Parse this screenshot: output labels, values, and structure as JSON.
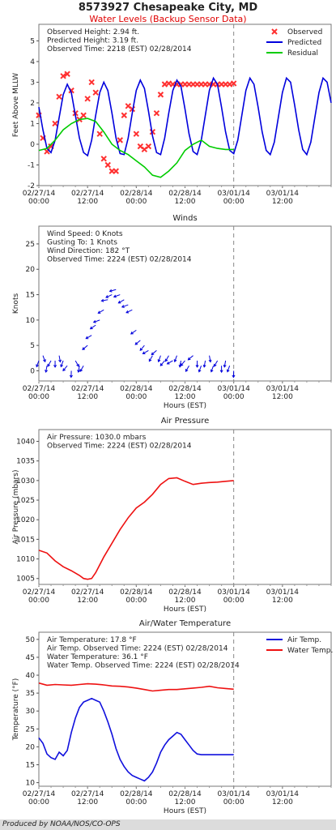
{
  "station": {
    "title": "8573927 Chesapeake City, MD",
    "subtitle": "Water Levels (Backup Sensor Data)"
  },
  "footer": "Produced by NOAA/NOS/CO-OPS",
  "x_axis": {
    "tick_labels": [
      [
        "02/27/14",
        "00:00"
      ],
      [
        "02/27/14",
        "12:00"
      ],
      [
        "02/28/14",
        "00:00"
      ],
      [
        "02/28/14",
        "12:00"
      ],
      [
        "03/01/14",
        "00:00"
      ],
      [
        "03/01/14",
        "12:00"
      ]
    ],
    "label": "Hours (EST)",
    "range_hours": [
      0,
      72
    ],
    "now_marker_hours": 48
  },
  "chart_data": [
    {
      "type": "line",
      "title": "",
      "ylabel": "Feet Above MLLW",
      "xlabel": "",
      "ylim": [
        -2,
        5.8
      ],
      "yticks": [
        -2,
        -1,
        0,
        1,
        2,
        3,
        4,
        5
      ],
      "grid": false,
      "legend_position": "top-right",
      "info": [
        "Observed Height:  2.94 ft.",
        "Predicted Height:  3.19 ft.",
        "Observed Time: 2218 (EST) 02/28/2014"
      ],
      "series": [
        {
          "name": "Observed",
          "color": "#ff3030",
          "style": "x-markers",
          "x": [
            0,
            1,
            2,
            3,
            4,
            5,
            6,
            7,
            8,
            9,
            10,
            11,
            12,
            13,
            14,
            15,
            16,
            17,
            18,
            19,
            20,
            21,
            22,
            23,
            24,
            25,
            26,
            27,
            28,
            29,
            30,
            31,
            32,
            33,
            34,
            35,
            36,
            37,
            38,
            39,
            40,
            41,
            42,
            43,
            44,
            45,
            46,
            47,
            48
          ],
          "y": [
            1.4,
            0.3,
            -0.35,
            -0.1,
            1.0,
            2.3,
            3.3,
            3.4,
            2.6,
            1.5,
            1.2,
            1.4,
            2.2,
            3.0,
            2.5,
            0.5,
            -0.7,
            -1.0,
            -1.3,
            -1.3,
            0.2,
            1.4,
            1.85,
            1.7,
            0.5,
            -0.1,
            -0.25,
            -0.1,
            0.6,
            1.5,
            2.4,
            2.9,
            2.94,
            2.9,
            2.9,
            2.9,
            2.9,
            2.9,
            2.9,
            2.9,
            2.9,
            2.9,
            2.9,
            2.9,
            2.9,
            2.9,
            2.9,
            2.9,
            2.94
          ]
        },
        {
          "name": "Predicted",
          "color": "#0000dd",
          "style": "line",
          "x": [
            0,
            1,
            2,
            3,
            4,
            5,
            6,
            7,
            8,
            9,
            10,
            11,
            12,
            13,
            14,
            15,
            16,
            17,
            18,
            19,
            20,
            21,
            22,
            23,
            24,
            25,
            26,
            27,
            28,
            29,
            30,
            31,
            32,
            33,
            34,
            35,
            36,
            37,
            38,
            39,
            40,
            41,
            42,
            43,
            44,
            45,
            46,
            47,
            48,
            49,
            50,
            51,
            52,
            53,
            54,
            55,
            56,
            57,
            58,
            59,
            60,
            61,
            62,
            63,
            64,
            65,
            66,
            67,
            68,
            69,
            70,
            71,
            72
          ],
          "y": [
            1.8,
            0.7,
            -0.2,
            -0.4,
            0.2,
            1.3,
            2.4,
            2.9,
            2.5,
            1.4,
            0.3,
            -0.4,
            -0.55,
            0.2,
            1.4,
            2.5,
            3.0,
            2.6,
            1.5,
            0.3,
            -0.45,
            -0.5,
            0.3,
            1.5,
            2.6,
            3.1,
            2.7,
            1.6,
            0.4,
            -0.4,
            -0.5,
            0.3,
            1.5,
            2.6,
            3.1,
            2.8,
            1.7,
            0.5,
            -0.35,
            -0.5,
            0.2,
            1.4,
            2.6,
            3.2,
            2.9,
            1.8,
            0.6,
            -0.3,
            -0.45,
            0.2,
            1.4,
            2.6,
            3.2,
            2.9,
            1.8,
            0.6,
            -0.3,
            -0.5,
            0.1,
            1.3,
            2.5,
            3.2,
            3.0,
            1.9,
            0.7,
            -0.25,
            -0.5,
            0.1,
            1.3,
            2.5,
            3.2,
            3.0,
            2.0
          ]
        },
        {
          "name": "Residual",
          "color": "#00cc00",
          "style": "line",
          "x": [
            0,
            2,
            4,
            6,
            8,
            10,
            12,
            14,
            16,
            18,
            20,
            22,
            24,
            26,
            28,
            30,
            32,
            34,
            36,
            38,
            40,
            42,
            44,
            46,
            48
          ],
          "y": [
            -0.3,
            -0.2,
            0.2,
            0.7,
            1.0,
            1.2,
            1.25,
            1.1,
            0.6,
            0.0,
            -0.3,
            -0.5,
            -0.8,
            -1.1,
            -1.5,
            -1.6,
            -1.3,
            -0.9,
            -0.3,
            0.0,
            0.2,
            -0.1,
            -0.2,
            -0.25,
            -0.25
          ]
        }
      ]
    },
    {
      "type": "scatter",
      "title": "Winds",
      "ylabel": "Knots",
      "xlabel": "Hours (EST)",
      "ylim": [
        -2,
        28.5
      ],
      "yticks": [
        0,
        5,
        10,
        15,
        20,
        25
      ],
      "grid": false,
      "info": [
        "Wind Speed: 0 Knots",
        "Gusting To: 1 Knots",
        "Wind Direction: 182 °T",
        "Observed Time: 2224 (EST) 02/28/2014"
      ],
      "series": [
        {
          "name": "Wind Speed",
          "color": "#0000dd",
          "style": "arrows",
          "x": [
            0,
            1,
            2,
            3,
            4,
            5,
            6,
            7,
            8,
            9,
            10,
            11,
            12,
            13,
            14,
            15,
            16,
            17,
            18,
            19,
            20,
            21,
            22,
            23,
            24,
            25,
            26,
            27,
            28,
            29,
            30,
            31,
            32,
            33,
            34,
            35,
            36,
            37,
            38,
            39,
            40,
            41,
            42,
            43,
            44,
            45,
            46,
            47,
            48
          ],
          "y": [
            2,
            3,
            1,
            2,
            2,
            3,
            2,
            1,
            0,
            2,
            1,
            1,
            5,
            7,
            9,
            10,
            12,
            14,
            15,
            16,
            15,
            14,
            13,
            12,
            8,
            6,
            5,
            4,
            3,
            4,
            3,
            2,
            3,
            2,
            3,
            2,
            2,
            1,
            3,
            2,
            1,
            2,
            3,
            1,
            2,
            1,
            2,
            1,
            0
          ],
          "direction_deg": [
            200,
            160,
            190,
            210,
            180,
            170,
            200,
            220,
            182,
            150,
            190,
            210,
            230,
            240,
            235,
            250,
            240,
            260,
            245,
            255,
            250,
            240,
            250,
            245,
            235,
            230,
            220,
            240,
            210,
            230,
            200,
            220,
            210,
            240,
            200,
            190,
            220,
            210,
            230,
            180,
            200,
            190,
            170,
            200,
            210,
            180,
            190,
            200,
            182
          ]
        }
      ]
    },
    {
      "type": "line",
      "title": "Air Pressure",
      "ylabel": "Air Pressure (mbars)",
      "xlabel": "Hours (EST)",
      "ylim": [
        1003.5,
        1043
      ],
      "yticks": [
        1005,
        1010,
        1015,
        1020,
        1025,
        1030,
        1035,
        1040
      ],
      "grid": false,
      "info": [
        "Air Pressure: 1030.0 mbars",
        "Observed Time: 2224 (EST) 02/28/2014"
      ],
      "series": [
        {
          "name": "Air Pressure",
          "color": "#ee1111",
          "x": [
            0,
            2,
            4,
            6,
            8,
            10,
            11,
            12,
            13,
            14,
            16,
            18,
            20,
            22,
            24,
            26,
            28,
            30,
            32,
            34,
            36,
            38,
            40,
            42,
            44,
            46,
            48
          ],
          "y": [
            1012.2,
            1011.5,
            1009.5,
            1008.0,
            1007.0,
            1005.8,
            1005.0,
            1004.8,
            1005.0,
            1006.5,
            1010.5,
            1014.0,
            1017.5,
            1020.5,
            1023.0,
            1024.5,
            1026.5,
            1029.0,
            1030.5,
            1030.7,
            1029.8,
            1029.0,
            1029.3,
            1029.5,
            1029.6,
            1029.8,
            1030.0
          ]
        }
      ]
    },
    {
      "type": "line",
      "title": "Air/Water Temperature",
      "ylabel": "Temperature (°F)",
      "xlabel": "Hours (EST)",
      "ylim": [
        9,
        52
      ],
      "yticks": [
        10,
        15,
        20,
        25,
        30,
        35,
        40,
        45,
        50
      ],
      "grid": false,
      "legend_position": "top-right",
      "info": [
        "Air Temperature: 17.8 °F",
        "Air Temp. Observed Time: 2224 (EST) 02/28/2014",
        "Water Temperature: 36.1 °F",
        "Water Temp. Observed Time: 2224 (EST) 02/28/2014"
      ],
      "series": [
        {
          "name": "Air Temp.",
          "color": "#1010dd",
          "x": [
            0,
            1,
            2,
            3,
            4,
            5,
            6,
            7,
            8,
            9,
            10,
            11,
            12,
            13,
            14,
            15,
            16,
            17,
            18,
            19,
            20,
            21,
            22,
            23,
            24,
            25,
            26,
            27,
            28,
            29,
            30,
            31,
            32,
            33,
            34,
            35,
            36,
            37,
            38,
            39,
            40,
            41,
            42,
            43,
            44,
            45,
            46,
            47,
            48
          ],
          "y": [
            22.5,
            21.0,
            18.0,
            17.0,
            16.5,
            18.5,
            17.5,
            19.0,
            24.0,
            28.0,
            31.0,
            32.5,
            33.0,
            33.5,
            33.0,
            32.5,
            30.0,
            27.0,
            23.5,
            19.5,
            16.5,
            14.5,
            13.0,
            12.0,
            11.5,
            11.0,
            10.5,
            11.5,
            13.0,
            15.5,
            18.5,
            20.5,
            22.0,
            23.0,
            24.0,
            23.5,
            22.0,
            20.5,
            19.0,
            18.0,
            17.8,
            17.8,
            17.8,
            17.8,
            17.8,
            17.8,
            17.8,
            17.8,
            17.8
          ]
        },
        {
          "name": "Water Temp.",
          "color": "#ee1111",
          "x": [
            0,
            2,
            4,
            6,
            8,
            10,
            12,
            14,
            16,
            18,
            20,
            22,
            24,
            26,
            28,
            30,
            32,
            34,
            36,
            38,
            40,
            42,
            44,
            46,
            48
          ],
          "y": [
            37.8,
            37.2,
            37.4,
            37.3,
            37.2,
            37.4,
            37.6,
            37.5,
            37.3,
            37.0,
            36.9,
            36.7,
            36.4,
            36.0,
            35.6,
            35.8,
            36.0,
            36.0,
            36.2,
            36.4,
            36.6,
            36.9,
            36.5,
            36.3,
            36.1
          ]
        }
      ]
    }
  ]
}
